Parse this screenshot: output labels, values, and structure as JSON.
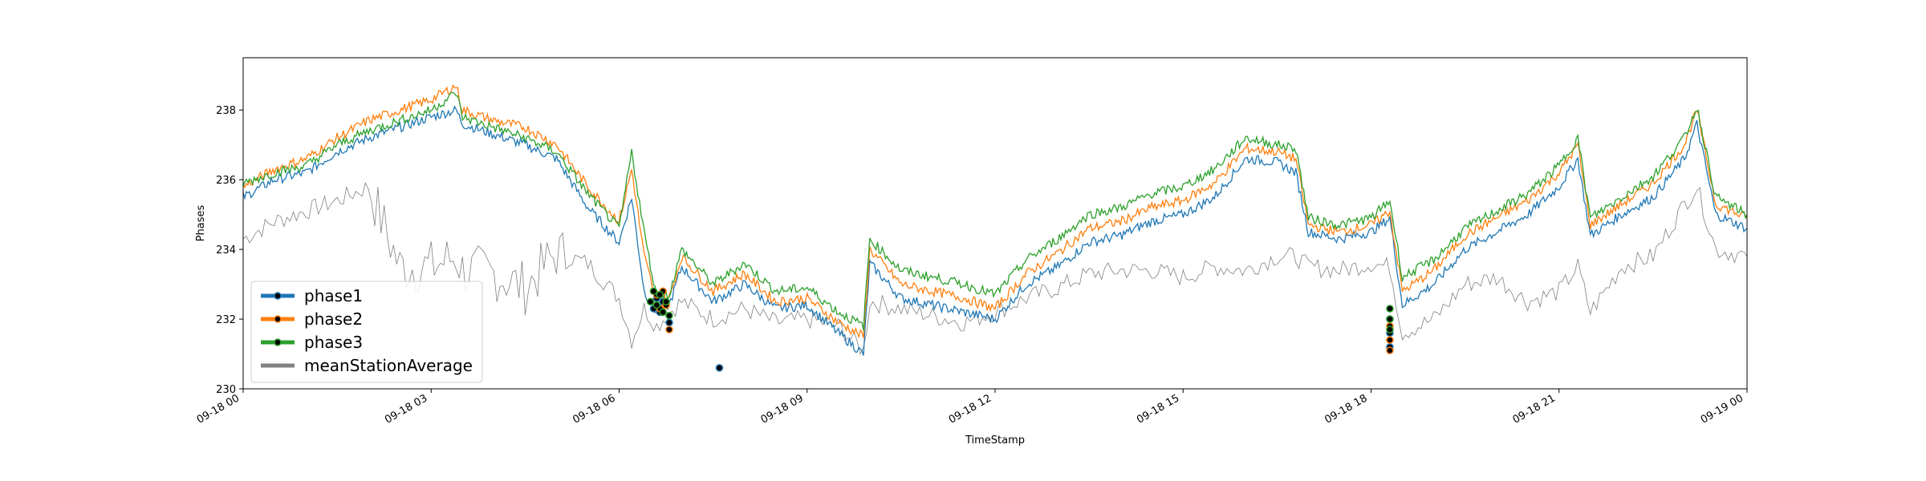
{
  "chart_data": {
    "type": "line",
    "title": "",
    "xlabel": "TimeStamp",
    "ylabel": "Phases",
    "xlim": [
      "09-18 00:00",
      "09-19 00:00"
    ],
    "ylim": [
      230,
      239.5
    ],
    "grid": false,
    "legend_position": "lower-left",
    "x_ticks": [
      "09-18 00",
      "09-18 03",
      "09-18 06",
      "09-18 09",
      "09-18 12",
      "09-18 15",
      "09-18 18",
      "09-18 21",
      "09-19 00"
    ],
    "y_ticks": [
      "230",
      "232",
      "234",
      "236",
      "238"
    ],
    "x_hours": [
      0,
      0.5,
      1,
      1.5,
      2,
      2.5,
      3,
      3.4,
      3.5,
      4,
      4.5,
      5,
      5.5,
      6,
      6.2,
      6.4,
      6.6,
      6.8,
      7,
      7.5,
      8,
      8.5,
      9,
      9.5,
      9.9,
      10,
      10.5,
      11,
      11.5,
      12,
      12.5,
      13,
      13.5,
      14,
      14.5,
      15,
      15.5,
      16,
      16.5,
      16.8,
      17,
      17.5,
      18,
      18.3,
      18.5,
      19,
      19.5,
      20,
      20.5,
      21,
      21.3,
      21.5,
      22,
      22.5,
      23,
      23.2,
      23.5,
      24
    ],
    "series": [
      {
        "name": "phase1",
        "color": "#1f77b4",
        "values": [
          235.5,
          236.0,
          236.2,
          236.8,
          237.2,
          237.5,
          237.8,
          238.0,
          237.6,
          237.3,
          237.0,
          236.6,
          235.2,
          234.2,
          235.5,
          232.8,
          232.2,
          232.4,
          233.5,
          232.5,
          233.0,
          232.3,
          232.4,
          231.6,
          231.0,
          233.6,
          232.6,
          232.4,
          232.2,
          232.0,
          233.0,
          233.5,
          234.2,
          234.4,
          234.8,
          235.0,
          235.5,
          236.6,
          236.5,
          236.2,
          234.5,
          234.3,
          234.5,
          234.9,
          232.4,
          233.0,
          234.0,
          234.5,
          235.0,
          235.8,
          236.6,
          234.4,
          235.0,
          235.5,
          236.6,
          237.6,
          235.0,
          234.6
        ]
      },
      {
        "name": "phase2",
        "color": "#ff7f0e",
        "values": [
          235.8,
          236.3,
          236.6,
          237.2,
          237.7,
          238.0,
          238.3,
          238.7,
          238.0,
          237.7,
          237.5,
          237.0,
          235.8,
          234.8,
          236.3,
          233.8,
          232.5,
          232.6,
          233.8,
          232.8,
          233.3,
          232.5,
          232.6,
          231.9,
          231.5,
          234.0,
          233.0,
          232.8,
          232.6,
          232.3,
          233.3,
          233.9,
          234.6,
          234.8,
          235.2,
          235.4,
          235.9,
          236.9,
          236.8,
          236.6,
          234.7,
          234.5,
          234.7,
          235.1,
          232.8,
          233.4,
          234.4,
          234.9,
          235.4,
          236.2,
          237.0,
          234.7,
          235.3,
          235.9,
          237.0,
          238.0,
          235.3,
          234.9
        ]
      },
      {
        "name": "phase3",
        "color": "#2ca02c",
        "values": [
          235.9,
          236.2,
          236.4,
          237.0,
          237.4,
          237.7,
          238.0,
          238.5,
          237.8,
          237.5,
          237.2,
          236.8,
          235.6,
          234.6,
          236.8,
          234.5,
          232.6,
          232.7,
          234.0,
          233.0,
          233.6,
          232.8,
          232.9,
          232.2,
          231.8,
          234.3,
          233.4,
          233.2,
          233.0,
          232.7,
          233.7,
          234.3,
          235.0,
          235.2,
          235.6,
          235.8,
          236.3,
          237.2,
          237.0,
          236.9,
          234.9,
          234.7,
          234.9,
          235.4,
          233.2,
          233.7,
          234.6,
          235.1,
          235.6,
          236.4,
          237.2,
          234.9,
          235.5,
          236.1,
          237.2,
          238.1,
          235.5,
          235.0
        ]
      },
      {
        "name": "meanStationAverage",
        "color": "#808080",
        "values": [
          234.3,
          234.8,
          235.1,
          235.4,
          235.8,
          233.5,
          233.5,
          233.8,
          233.4,
          233.3,
          232.9,
          233.9,
          233.6,
          232.6,
          231.4,
          232.3,
          231.8,
          232.2,
          232.5,
          232.0,
          232.3,
          231.9,
          232.0,
          231.8,
          231.1,
          232.5,
          232.3,
          232.1,
          231.9,
          232.2,
          232.6,
          232.9,
          233.3,
          233.4,
          233.4,
          233.2,
          233.5,
          233.4,
          233.8,
          233.8,
          233.5,
          233.4,
          233.6,
          233.5,
          231.6,
          232.0,
          233.0,
          233.2,
          232.5,
          232.8,
          233.5,
          232.2,
          233.5,
          233.8,
          235.3,
          235.8,
          234.0,
          233.8
        ]
      }
    ],
    "event_markers": {
      "phase1": {
        "x_hours": [
          6.55,
          6.6,
          6.65,
          6.7,
          6.75,
          6.8,
          7.6,
          18.3,
          18.3,
          18.3
        ],
        "values": [
          232.3,
          232.6,
          232.2,
          232.5,
          232.4,
          231.9,
          230.6,
          231.2,
          231.6,
          232.0
        ]
      },
      "phase2": {
        "x_hours": [
          6.6,
          6.65,
          6.7,
          6.75,
          6.8,
          18.3,
          18.3,
          18.3
        ],
        "values": [
          232.7,
          232.3,
          232.8,
          232.4,
          231.7,
          231.1,
          231.4,
          231.8
        ]
      },
      "phase3": {
        "x_hours": [
          6.5,
          6.55,
          6.6,
          6.65,
          6.7,
          6.75,
          6.8,
          18.3,
          18.3,
          18.3
        ],
        "values": [
          232.5,
          232.8,
          232.4,
          232.7,
          232.2,
          232.5,
          232.1,
          232.3,
          232.0,
          231.7
        ]
      }
    }
  }
}
